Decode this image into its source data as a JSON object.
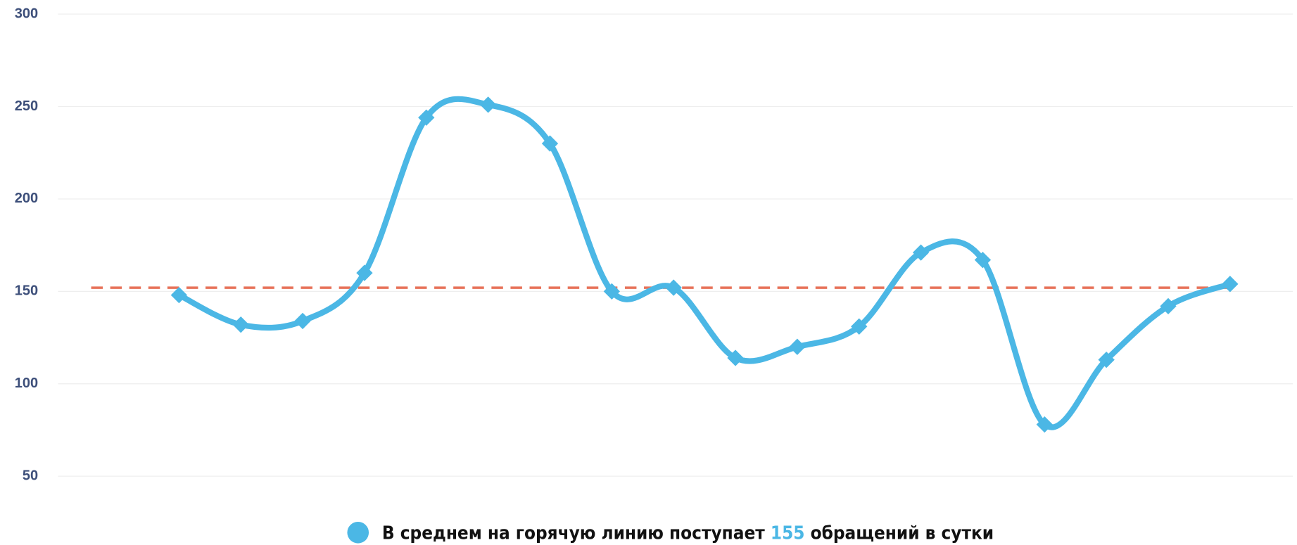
{
  "chart_data": {
    "type": "line",
    "series": [
      {
        "color": "#4bb7e5",
        "values": [
          148,
          132,
          134,
          160,
          244,
          251,
          230,
          150,
          152,
          114,
          120,
          131,
          171,
          167,
          78,
          113,
          142,
          154
        ]
      }
    ],
    "reference_line": {
      "value": 152,
      "color": "#e8735a"
    },
    "ylim": [
      50,
      300
    ],
    "yticks": [
      50,
      100,
      150,
      200,
      250,
      300
    ],
    "grid": true,
    "legend": {
      "text_before": "В среднем на горячую линию поступает",
      "highlight": "155",
      "text_after": "обращений в сутки"
    }
  }
}
